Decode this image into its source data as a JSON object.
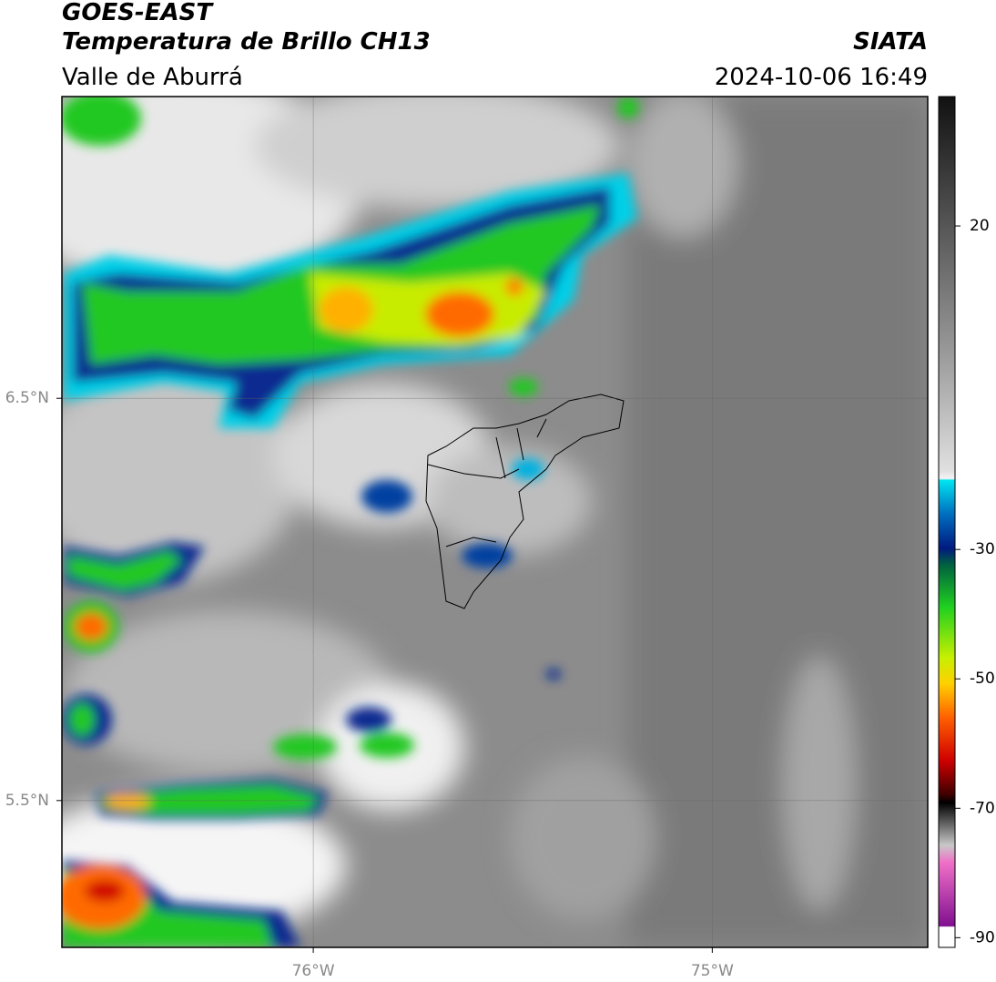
{
  "header": {
    "title": "GOES-EAST",
    "subtitle": "Temperatura de Brillo CH13",
    "source": "SIATA",
    "region": "Valle de Aburrá",
    "datetime": "2024-10-06 16:49"
  },
  "map": {
    "lon_lim": [
      -76.63,
      -74.46
    ],
    "lat_lim": [
      5.135,
      7.25
    ],
    "lon_ticks": [
      {
        "value": -76,
        "label": "76°W"
      },
      {
        "value": -75,
        "label": "75°W"
      }
    ],
    "lat_ticks": [
      {
        "value": 6.5,
        "label": "6.5°N"
      },
      {
        "value": 5.5,
        "label": "5.5°N"
      }
    ]
  },
  "colorbar": {
    "lim": [
      -91.5,
      40
    ],
    "ticks": [
      20,
      -30,
      -50,
      -70,
      -90
    ]
  }
}
